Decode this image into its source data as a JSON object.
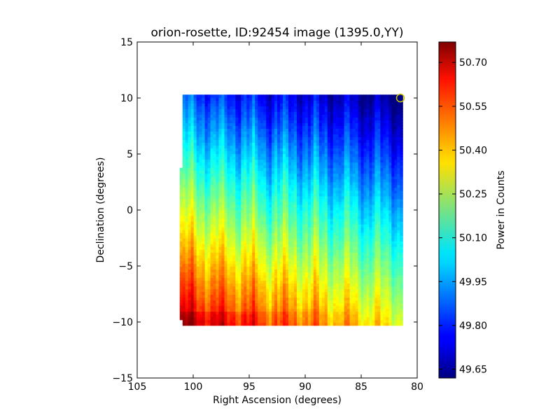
{
  "chart_data": {
    "type": "heatmap",
    "title": "orion-rosette, ID:92454 image (1395.0,YY)",
    "xlabel": "Right Ascension (degrees)",
    "ylabel": "Declination (degrees)",
    "xlim": [
      105,
      80
    ],
    "ylim": [
      -15,
      15
    ],
    "x_ticks": [
      "105",
      "100",
      "95",
      "90",
      "85",
      "80"
    ],
    "y_ticks": [
      "15",
      "10",
      "5",
      "0",
      "−5",
      "−10",
      "−15"
    ],
    "x_tick_values": [
      105,
      100,
      95,
      90,
      85,
      80
    ],
    "y_tick_values": [
      15,
      10,
      5,
      0,
      -5,
      -10,
      -15
    ],
    "image_extent": {
      "ra": [
        101.2,
        81.3
      ],
      "dec": [
        -10.3,
        10.3
      ]
    },
    "colorbar": {
      "label": "Power in Counts",
      "vmin": 49.62,
      "vmax": 50.77,
      "ticks": [
        "49.65",
        "49.80",
        "49.95",
        "50.10",
        "50.25",
        "50.40",
        "50.55",
        "50.70"
      ],
      "tick_values": [
        49.65,
        49.8,
        49.95,
        50.1,
        50.25,
        50.4,
        50.55,
        50.7
      ],
      "colormap": "jet"
    },
    "marker": {
      "shape": "circle",
      "ra": 81.5,
      "dec": 10.0,
      "edge_color": "#c8c800"
    },
    "grid": false
  }
}
